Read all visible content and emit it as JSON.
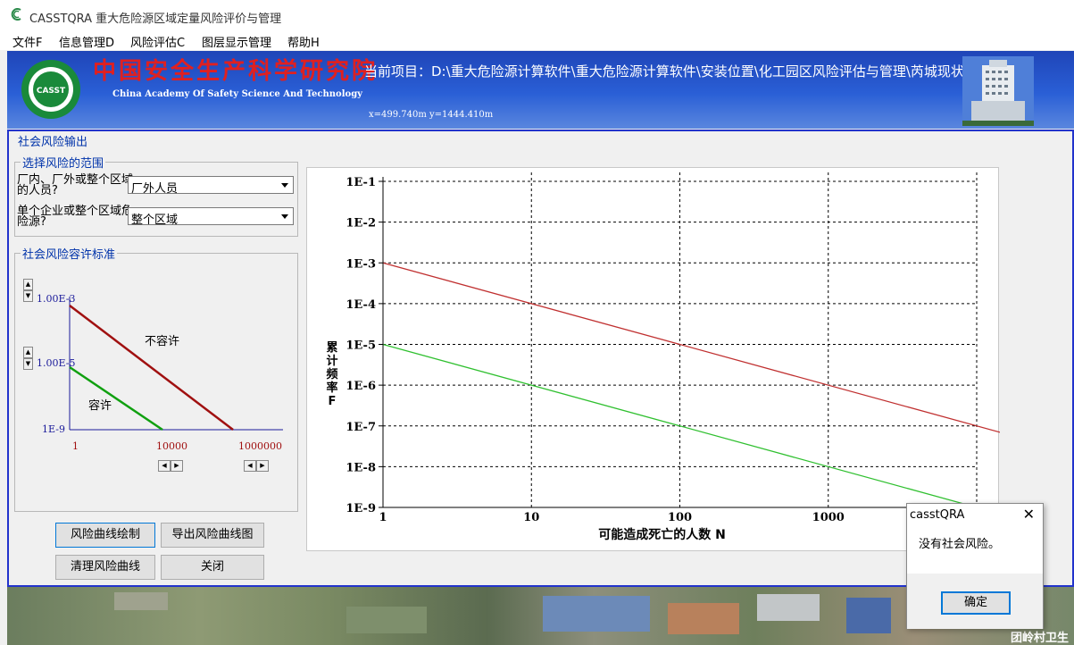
{
  "window": {
    "title": "CASSTQRA 重大危险源区域定量风险评价与管理"
  },
  "menu": [
    "文件F",
    "信息管理D",
    "风险评估C",
    "图层显示管理",
    "帮助H"
  ],
  "banner": {
    "logo_text": "CASST",
    "cn_name": "中国安全生产科学研究院",
    "en_name": "China Academy Of Safety Science And Technology",
    "project_path": "当前项目：D:\\重大危险源计算软件\\重大危险源计算软件\\安装位置\\化工园区风险评估与管理\\芮城现状",
    "coords": "x=499.740m  y=1444.410m"
  },
  "panel": {
    "title": "社会风险输出",
    "range_group": {
      "title": "选择风险的范围",
      "q1_label": "厂内、厂外或整个区域的人员?",
      "q1_value": "厂外人员",
      "q2_label": "单个企业或整个区域危险源?",
      "q2_value": "整个区域"
    },
    "criteria_group": {
      "title": "社会风险容许标准",
      "upper_value": "1.00E-3",
      "lower_value": "1.00E-5",
      "y_min": "1E-9",
      "x_min": "1",
      "x_mid": "10000",
      "x_max": "1000000",
      "intolerable_label": "不容许",
      "tolerable_label": "容许",
      "colors": {
        "intolerable": "#a01010",
        "tolerable": "#10a010",
        "axis": "#1a1a9a",
        "xtick": "#a01010"
      }
    },
    "buttons": {
      "draw": "风险曲线绘制",
      "export": "导出风险曲线图",
      "clear": "清理风险曲线",
      "close": "关闭"
    }
  },
  "chart_data": {
    "type": "line",
    "x_scale": "log",
    "y_scale": "log",
    "xlim": [
      1,
      10000
    ],
    "ylim": [
      1e-09,
      0.1
    ],
    "xticks": [
      "1",
      "10",
      "100",
      "1000"
    ],
    "yticks": [
      "1E-1",
      "1E-2",
      "1E-3",
      "1E-4",
      "1E-5",
      "1E-6",
      "1E-7",
      "1E-8",
      "1E-9"
    ],
    "xlabel": "可能造成死亡的人数 N",
    "ylabel": "累计频率F",
    "grid": true,
    "series": [
      {
        "color": "#c03030",
        "x": [
          1,
          10000
        ],
        "y": [
          0.001,
          1e-07
        ]
      },
      {
        "color": "#30c030",
        "x": [
          1,
          10000
        ],
        "y": [
          1e-05,
          1e-09
        ]
      }
    ]
  },
  "background": {
    "village_label": "团岭村卫生"
  },
  "dialog": {
    "title": "casstQRA",
    "message": "没有社会风险。",
    "ok_label": "确定",
    "close_glyph": "✕"
  }
}
